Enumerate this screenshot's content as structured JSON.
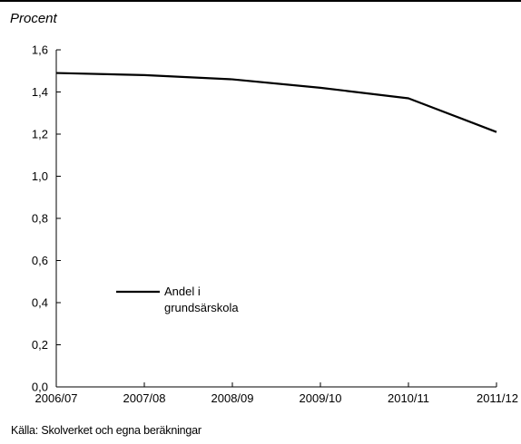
{
  "unit_label": "Procent",
  "source": "Källa: Skolverket och egna beräkningar",
  "chart_data": {
    "type": "line",
    "title": "",
    "xlabel": "",
    "ylabel": "Procent",
    "categories": [
      "2006/07",
      "2007/08",
      "2008/09",
      "2009/10",
      "2010/11",
      "2011/12"
    ],
    "series": [
      {
        "name": "Andel i grundsärskola",
        "legend_lines": [
          "Andel i",
          "grundsärskola"
        ],
        "values": [
          1.49,
          1.48,
          1.46,
          1.42,
          1.37,
          1.21
        ],
        "color": "#000000"
      }
    ],
    "ylim": [
      0,
      1.6
    ],
    "yticks": [
      0,
      0.2,
      0.4,
      0.6,
      0.8,
      1.0,
      1.2,
      1.4,
      1.6
    ],
    "ytick_labels": [
      "0,0",
      "0,2",
      "0,4",
      "0,6",
      "0,8",
      "1,0",
      "1,2",
      "1,4",
      "1,6"
    ],
    "grid": false,
    "legend_position": "lower-left inside plot"
  }
}
